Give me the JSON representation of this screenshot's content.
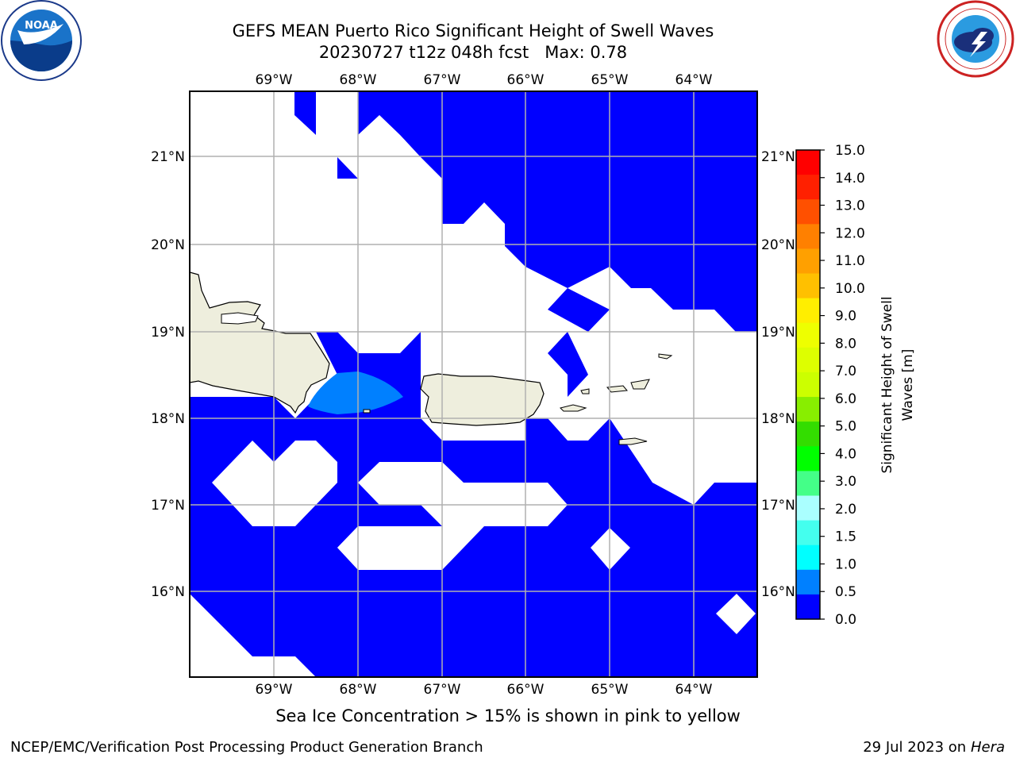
{
  "title_line1": "GEFS MEAN Puerto Rico Significant Height of Swell Waves",
  "title_line2": "20230727 t12z 048h fcst   Max: 0.78",
  "subtitle": "Sea Ice Concentration > 15% is shown in pink to yellow",
  "footer_left": "NCEP/EMC/Verification Post Processing Product Generation Branch",
  "footer_right_date": "29 Jul 2023 on ",
  "footer_right_host": "Hera",
  "logos": {
    "left": "NOAA",
    "right": "NATIONAL WEATHER SERVICE"
  },
  "map": {
    "lon_labels": [
      "69°W",
      "68°W",
      "67°W",
      "66°W",
      "65°W",
      "64°W"
    ],
    "lat_labels": [
      "21°N",
      "20°N",
      "19°N",
      "18°N",
      "17°N",
      "16°N"
    ],
    "extent": {
      "lon_min": -70.0,
      "lon_max": -63.25,
      "lat_min": 15.0,
      "lat_max": 21.75
    },
    "colors": {
      "land": "#eeeedd",
      "swell_0": "#0000ff",
      "swell_05": "#0080ff",
      "no_data": "#ffffff",
      "grid": "#b0b0b0"
    }
  },
  "colorbar": {
    "label": "Significant Height of Swell Waves [m]",
    "label_line1": "Significant Height of Swell",
    "label_line2": "Waves [m]",
    "ticks": [
      "15.0",
      "14.0",
      "13.0",
      "12.0",
      "11.0",
      "10.0",
      "9.0",
      "8.0",
      "7.0",
      "6.0",
      "5.0",
      "4.0",
      "3.0",
      "2.0",
      "1.5",
      "1.0",
      "0.5",
      "0.0"
    ],
    "colors_top_to_bottom": [
      "#ff0000",
      "#ff2000",
      "#ff5000",
      "#ff8000",
      "#ffa000",
      "#ffc000",
      "#ffee00",
      "#eeff00",
      "#ddff00",
      "#ccff00",
      "#88ee00",
      "#33dd00",
      "#00ff00",
      "#44ff88",
      "#aaffff",
      "#44ffee",
      "#00ffff",
      "#0080ff",
      "#0000ff"
    ]
  }
}
